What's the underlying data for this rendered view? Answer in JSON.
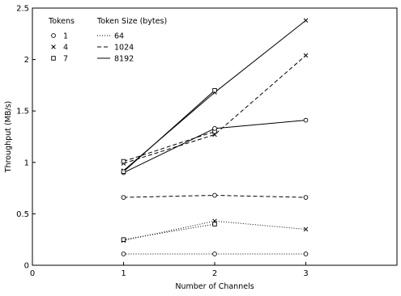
{
  "chart_data": {
    "type": "line",
    "title": "",
    "xlabel": "Number of Channels",
    "ylabel": "Throughput (MB/s)",
    "xlim": [
      0,
      4
    ],
    "ylim": [
      0,
      2.5
    ],
    "x_ticks": [
      0,
      1,
      2,
      3
    ],
    "x_tick_labels": [
      "0",
      "1",
      "2",
      "3"
    ],
    "y_ticks": [
      0,
      0.5,
      1,
      1.5,
      2,
      2.5
    ],
    "y_tick_labels": [
      "0",
      "0.5",
      "1",
      "1.5",
      "2",
      "2.5"
    ],
    "grid": false,
    "legend": {
      "placement": "top-left",
      "tokens_title": "Tokens",
      "size_title": "Token Size (bytes)",
      "tokens": [
        {
          "label": "1",
          "marker": "circle"
        },
        {
          "label": "4",
          "marker": "cross"
        },
        {
          "label": "7",
          "marker": "square"
        }
      ],
      "sizes": [
        {
          "label": "64",
          "dash": "dotted"
        },
        {
          "label": "1024",
          "dash": "dashed"
        },
        {
          "label": "8192",
          "dash": "solid"
        }
      ]
    },
    "series": [
      {
        "tokens": "1",
        "size": "64",
        "marker": "circle",
        "dash": "dotted",
        "x": [
          1,
          2,
          3
        ],
        "y": [
          0.11,
          0.11,
          0.11
        ]
      },
      {
        "tokens": "4",
        "size": "64",
        "marker": "cross",
        "dash": "dotted",
        "x": [
          1,
          2,
          3
        ],
        "y": [
          0.24,
          0.43,
          0.35
        ]
      },
      {
        "tokens": "7",
        "size": "64",
        "marker": "square",
        "dash": "dotted",
        "x": [
          1,
          2
        ],
        "y": [
          0.25,
          0.4
        ]
      },
      {
        "tokens": "1",
        "size": "1024",
        "marker": "circle",
        "dash": "dashed",
        "x": [
          1,
          2,
          3
        ],
        "y": [
          0.66,
          0.68,
          0.66
        ]
      },
      {
        "tokens": "4",
        "size": "1024",
        "marker": "cross",
        "dash": "dashed",
        "x": [
          1,
          2,
          3
        ],
        "y": [
          0.99,
          1.27,
          2.04
        ]
      },
      {
        "tokens": "7",
        "size": "1024",
        "marker": "square",
        "dash": "dashed",
        "x": [
          1,
          2
        ],
        "y": [
          1.01,
          1.3
        ]
      },
      {
        "tokens": "1",
        "size": "8192",
        "marker": "circle",
        "dash": "solid",
        "x": [
          1,
          2,
          3
        ],
        "y": [
          0.9,
          1.33,
          1.41
        ]
      },
      {
        "tokens": "4",
        "size": "8192",
        "marker": "cross",
        "dash": "solid",
        "x": [
          1,
          2,
          3
        ],
        "y": [
          0.92,
          1.68,
          2.38
        ]
      },
      {
        "tokens": "7",
        "size": "8192",
        "marker": "square",
        "dash": "solid",
        "x": [
          1,
          2
        ],
        "y": [
          0.91,
          1.7
        ]
      }
    ]
  }
}
